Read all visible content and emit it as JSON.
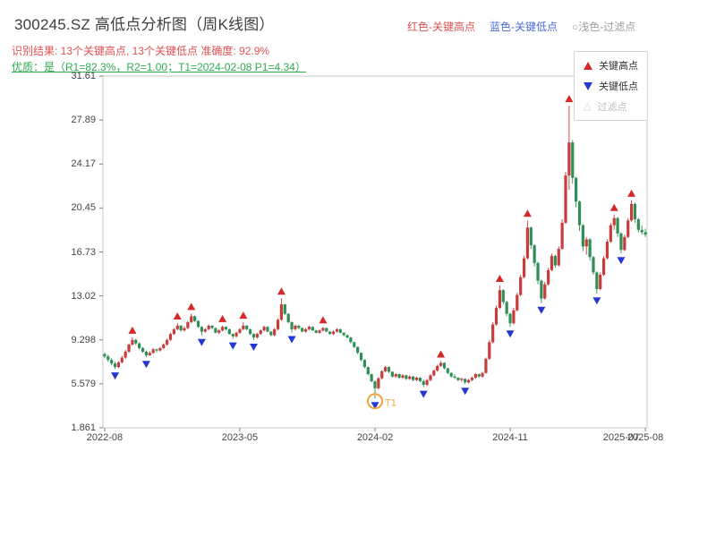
{
  "header": {
    "title": "300245.SZ 高低点分析图（周K线图）",
    "legend_inline": {
      "high_label": "红色-关键高点",
      "low_label": "蓝色-关键低点",
      "filter_label": "○浅色-过滤点"
    },
    "result_line": "识别结果: 13个关键高点, 13个关键低点  准确度: 92.9%",
    "quality_line": "优质：是（R1=82.3%，R2=1.00；T1=2024-02-08 P1=4.34）"
  },
  "chart_data": {
    "type": "candlestick",
    "title": "300245.SZ 高低点分析图（周K线图）",
    "grid": false,
    "legend_position": "upper right",
    "ylim": [
      1.861,
      31.61
    ],
    "y_ticks": [
      "31.61",
      "27.89",
      "24.17",
      "20.45",
      "16.73",
      "13.02",
      "9.298",
      "5.579",
      "1.861"
    ],
    "x_ticks": [
      {
        "label": "2022-08",
        "index": 0
      },
      {
        "label": "2023-05",
        "index": 39
      },
      {
        "label": "2024-02",
        "index": 78
      },
      {
        "label": "2024-11",
        "index": 117
      },
      {
        "label": "2025-08",
        "index": 156
      }
    ],
    "x_extra_label": "2025-07",
    "colors": {
      "up": "#c83c3c",
      "down": "#2f8f55",
      "key_high": "#d62828",
      "key_low": "#2638cf",
      "annotation": "#f2a33c",
      "axis": "#c9c9c9"
    },
    "legend": [
      {
        "label": "关键高点",
        "type": "key-high"
      },
      {
        "label": "关键低点",
        "type": "key-low"
      },
      {
        "label": "过滤点",
        "type": "filtered"
      }
    ],
    "candles": [
      [
        8.1,
        8.25,
        7.75,
        7.9
      ],
      [
        7.9,
        8.05,
        7.45,
        7.6
      ],
      [
        7.6,
        7.75,
        7.15,
        7.3
      ],
      [
        7.3,
        7.45,
        6.85,
        7.0
      ],
      [
        7.0,
        7.5,
        6.9,
        7.4
      ],
      [
        7.4,
        7.95,
        7.3,
        7.8
      ],
      [
        7.8,
        8.45,
        7.7,
        8.3
      ],
      [
        8.3,
        9.0,
        8.2,
        8.9
      ],
      [
        8.9,
        9.52,
        8.8,
        9.3
      ],
      [
        9.3,
        9.4,
        8.85,
        9.0
      ],
      [
        9.0,
        9.1,
        8.5,
        8.6
      ],
      [
        8.6,
        8.7,
        8.2,
        8.3
      ],
      [
        8.3,
        8.4,
        7.82,
        8.0
      ],
      [
        8.0,
        8.35,
        7.95,
        8.2
      ],
      [
        8.2,
        8.6,
        8.1,
        8.5
      ],
      [
        8.5,
        8.55,
        8.25,
        8.4
      ],
      [
        8.4,
        8.7,
        8.3,
        8.6
      ],
      [
        8.6,
        9.0,
        8.5,
        8.9
      ],
      [
        8.9,
        9.4,
        8.8,
        9.3
      ],
      [
        9.3,
        9.9,
        9.2,
        9.8
      ],
      [
        9.8,
        10.3,
        9.7,
        10.2
      ],
      [
        10.2,
        10.72,
        10.1,
        10.5
      ],
      [
        10.5,
        10.55,
        10.0,
        10.1
      ],
      [
        10.1,
        10.45,
        10.0,
        10.3
      ],
      [
        10.3,
        10.9,
        10.2,
        10.8
      ],
      [
        10.8,
        11.52,
        10.7,
        11.3
      ],
      [
        11.3,
        11.35,
        10.8,
        10.9
      ],
      [
        10.9,
        10.95,
        10.3,
        10.4
      ],
      [
        10.4,
        10.45,
        9.68,
        10.0
      ],
      [
        10.0,
        10.3,
        9.9,
        10.2
      ],
      [
        10.2,
        10.6,
        10.1,
        10.5
      ],
      [
        10.5,
        10.55,
        10.2,
        10.3
      ],
      [
        10.3,
        10.35,
        9.85,
        9.9
      ],
      [
        9.9,
        10.2,
        9.8,
        10.1
      ],
      [
        10.1,
        10.5,
        10.0,
        10.4
      ],
      [
        10.4,
        10.45,
        10.1,
        10.2
      ],
      [
        10.2,
        10.25,
        9.75,
        9.8
      ],
      [
        9.8,
        9.85,
        9.38,
        9.6
      ],
      [
        9.6,
        10.0,
        9.5,
        9.9
      ],
      [
        9.9,
        10.3,
        9.8,
        10.2
      ],
      [
        10.2,
        10.78,
        10.1,
        10.5
      ],
      [
        10.5,
        10.55,
        10.1,
        10.2
      ],
      [
        10.2,
        10.25,
        9.7,
        9.8
      ],
      [
        9.8,
        9.85,
        9.28,
        9.5
      ],
      [
        9.5,
        9.9,
        9.4,
        9.8
      ],
      [
        9.8,
        10.2,
        9.7,
        10.1
      ],
      [
        10.1,
        10.5,
        10.0,
        10.4
      ],
      [
        10.4,
        10.45,
        9.95,
        10.0
      ],
      [
        10.0,
        10.05,
        9.6,
        9.7
      ],
      [
        9.7,
        10.3,
        9.6,
        10.2
      ],
      [
        10.2,
        11.1,
        10.1,
        11.0
      ],
      [
        11.0,
        12.82,
        10.9,
        12.3
      ],
      [
        12.3,
        12.35,
        11.4,
        11.5
      ],
      [
        11.5,
        11.55,
        10.7,
        10.8
      ],
      [
        10.8,
        10.85,
        9.92,
        10.2
      ],
      [
        10.2,
        10.6,
        10.1,
        10.5
      ],
      [
        10.5,
        10.55,
        10.2,
        10.3
      ],
      [
        10.3,
        10.35,
        9.95,
        10.0
      ],
      [
        10.0,
        10.3,
        9.9,
        10.2
      ],
      [
        10.2,
        10.5,
        10.1,
        10.4
      ],
      [
        10.4,
        10.45,
        10.05,
        10.1
      ],
      [
        10.1,
        10.15,
        9.85,
        9.9
      ],
      [
        9.9,
        10.2,
        9.8,
        10.1
      ],
      [
        10.1,
        10.4,
        10.0,
        10.3
      ],
      [
        10.3,
        10.35,
        9.95,
        10.0
      ],
      [
        10.0,
        10.05,
        9.75,
        9.8
      ],
      [
        9.8,
        10.1,
        9.7,
        10.0
      ],
      [
        10.0,
        10.3,
        9.9,
        10.2
      ],
      [
        10.2,
        10.25,
        9.85,
        9.9
      ],
      [
        9.9,
        9.95,
        9.6,
        9.7
      ],
      [
        9.7,
        9.75,
        9.4,
        9.5
      ],
      [
        9.5,
        9.55,
        9.0,
        9.1
      ],
      [
        9.1,
        9.15,
        8.6,
        8.7
      ],
      [
        8.7,
        8.75,
        8.1,
        8.2
      ],
      [
        8.2,
        8.25,
        7.5,
        7.6
      ],
      [
        7.6,
        7.65,
        6.9,
        7.0
      ],
      [
        7.0,
        7.05,
        6.3,
        6.4
      ],
      [
        6.4,
        6.45,
        5.7,
        5.8
      ],
      [
        5.8,
        5.85,
        4.34,
        5.2
      ],
      [
        5.2,
        6.15,
        5.1,
        6.05
      ],
      [
        6.05,
        6.75,
        5.95,
        6.65
      ],
      [
        6.65,
        7.1,
        6.55,
        7.0
      ],
      [
        7.0,
        7.05,
        6.5,
        6.6
      ],
      [
        6.6,
        6.65,
        6.1,
        6.2
      ],
      [
        6.2,
        6.5,
        6.1,
        6.4
      ],
      [
        6.4,
        6.45,
        6.0,
        6.1
      ],
      [
        6.1,
        6.4,
        6.0,
        6.3
      ],
      [
        6.3,
        6.35,
        5.9,
        6.0
      ],
      [
        6.0,
        6.3,
        5.9,
        6.2
      ],
      [
        6.2,
        6.25,
        5.8,
        5.9
      ],
      [
        5.9,
        6.2,
        5.8,
        6.1
      ],
      [
        6.1,
        6.15,
        5.7,
        5.8
      ],
      [
        5.8,
        5.95,
        5.3,
        5.5
      ],
      [
        5.5,
        6.0,
        5.4,
        5.9
      ],
      [
        5.9,
        6.4,
        5.8,
        6.3
      ],
      [
        6.3,
        6.8,
        6.2,
        6.7
      ],
      [
        6.7,
        7.2,
        6.6,
        7.1
      ],
      [
        7.1,
        7.5,
        7.0,
        7.35
      ],
      [
        7.35,
        7.4,
        6.8,
        6.9
      ],
      [
        6.9,
        6.95,
        6.4,
        6.5
      ],
      [
        6.5,
        6.55,
        6.1,
        6.2
      ],
      [
        6.2,
        6.4,
        6.0,
        6.1
      ],
      [
        6.1,
        6.15,
        5.8,
        5.9
      ],
      [
        5.9,
        6.1,
        5.75,
        6.0
      ],
      [
        6.0,
        6.05,
        5.55,
        5.7
      ],
      [
        5.7,
        6.0,
        5.6,
        5.9
      ],
      [
        5.9,
        6.2,
        5.8,
        6.1
      ],
      [
        6.1,
        6.5,
        6.0,
        6.4
      ],
      [
        6.4,
        6.45,
        6.1,
        6.2
      ],
      [
        6.2,
        6.6,
        6.1,
        6.5
      ],
      [
        6.5,
        7.8,
        6.45,
        7.7
      ],
      [
        7.7,
        9.3,
        7.6,
        9.1
      ],
      [
        9.1,
        10.8,
        9.0,
        10.6
      ],
      [
        10.6,
        12.2,
        10.5,
        12.0
      ],
      [
        12.0,
        13.9,
        11.9,
        13.5
      ],
      [
        13.5,
        13.6,
        12.3,
        12.5
      ],
      [
        12.5,
        12.6,
        11.3,
        11.5
      ],
      [
        11.5,
        11.6,
        10.4,
        10.7
      ],
      [
        10.7,
        12.0,
        10.6,
        11.8
      ],
      [
        11.8,
        13.3,
        11.7,
        13.1
      ],
      [
        13.1,
        14.8,
        13.0,
        14.6
      ],
      [
        14.6,
        16.4,
        14.5,
        16.2
      ],
      [
        16.2,
        19.4,
        16.1,
        18.8
      ],
      [
        18.8,
        18.9,
        17.0,
        17.3
      ],
      [
        17.3,
        17.4,
        15.5,
        15.8
      ],
      [
        15.8,
        15.9,
        14.0,
        14.3
      ],
      [
        14.3,
        14.4,
        12.4,
        12.8
      ],
      [
        12.8,
        14.2,
        12.7,
        14.0
      ],
      [
        14.0,
        15.4,
        13.9,
        15.2
      ],
      [
        15.2,
        16.6,
        15.1,
        16.4
      ],
      [
        16.4,
        16.5,
        15.4,
        15.6
      ],
      [
        15.6,
        17.2,
        15.5,
        17.0
      ],
      [
        17.0,
        19.5,
        16.9,
        19.2
      ],
      [
        19.2,
        23.5,
        19.1,
        23.2
      ],
      [
        23.2,
        29.1,
        22.0,
        26.0
      ],
      [
        26.0,
        26.2,
        22.5,
        23.0
      ],
      [
        23.0,
        23.1,
        20.5,
        21.0
      ],
      [
        21.0,
        21.1,
        18.5,
        19.0
      ],
      [
        19.0,
        19.1,
        16.8,
        17.2
      ],
      [
        17.2,
        18.0,
        16.5,
        17.8
      ],
      [
        17.8,
        17.9,
        16.0,
        16.3
      ],
      [
        16.3,
        16.4,
        14.8,
        15.0
      ],
      [
        15.0,
        15.1,
        13.2,
        13.6
      ],
      [
        13.6,
        15.0,
        13.5,
        14.8
      ],
      [
        14.8,
        16.4,
        14.7,
        16.2
      ],
      [
        16.2,
        17.8,
        16.1,
        17.6
      ],
      [
        17.6,
        19.2,
        17.5,
        19.0
      ],
      [
        19.0,
        19.9,
        18.6,
        19.6
      ],
      [
        19.6,
        19.7,
        18.0,
        18.3
      ],
      [
        18.3,
        18.4,
        16.6,
        16.9
      ],
      [
        16.9,
        18.2,
        16.8,
        18.0
      ],
      [
        18.0,
        19.6,
        17.9,
        19.4
      ],
      [
        19.4,
        21.1,
        19.3,
        20.8
      ],
      [
        20.8,
        20.9,
        19.2,
        19.5
      ],
      [
        19.5,
        19.6,
        18.4,
        18.6
      ],
      [
        18.6,
        19.0,
        18.2,
        18.4
      ],
      [
        18.4,
        18.7,
        18.0,
        18.2
      ]
    ],
    "key_highs": [
      {
        "i": 8,
        "v": 9.52
      },
      {
        "i": 21,
        "v": 10.72
      },
      {
        "i": 25,
        "v": 11.52
      },
      {
        "i": 34,
        "v": 10.5
      },
      {
        "i": 40,
        "v": 10.78
      },
      {
        "i": 51,
        "v": 12.82
      },
      {
        "i": 63,
        "v": 10.4
      },
      {
        "i": 97,
        "v": 7.5
      },
      {
        "i": 114,
        "v": 13.9
      },
      {
        "i": 122,
        "v": 19.4
      },
      {
        "i": 134,
        "v": 29.1
      },
      {
        "i": 147,
        "v": 19.9
      },
      {
        "i": 152,
        "v": 21.1
      }
    ],
    "key_lows": [
      {
        "i": 3,
        "v": 6.85
      },
      {
        "i": 12,
        "v": 7.82
      },
      {
        "i": 28,
        "v": 9.68
      },
      {
        "i": 37,
        "v": 9.38
      },
      {
        "i": 43,
        "v": 9.28
      },
      {
        "i": 54,
        "v": 9.92
      },
      {
        "i": 78,
        "v": 4.34
      },
      {
        "i": 92,
        "v": 5.3
      },
      {
        "i": 104,
        "v": 5.55
      },
      {
        "i": 117,
        "v": 10.4
      },
      {
        "i": 126,
        "v": 12.4
      },
      {
        "i": 142,
        "v": 13.2
      },
      {
        "i": 149,
        "v": 16.6
      }
    ],
    "annotation": {
      "label": "T1",
      "i": 78,
      "v": 4.34,
      "date": "2024-02-08",
      "price": "4.34"
    }
  }
}
